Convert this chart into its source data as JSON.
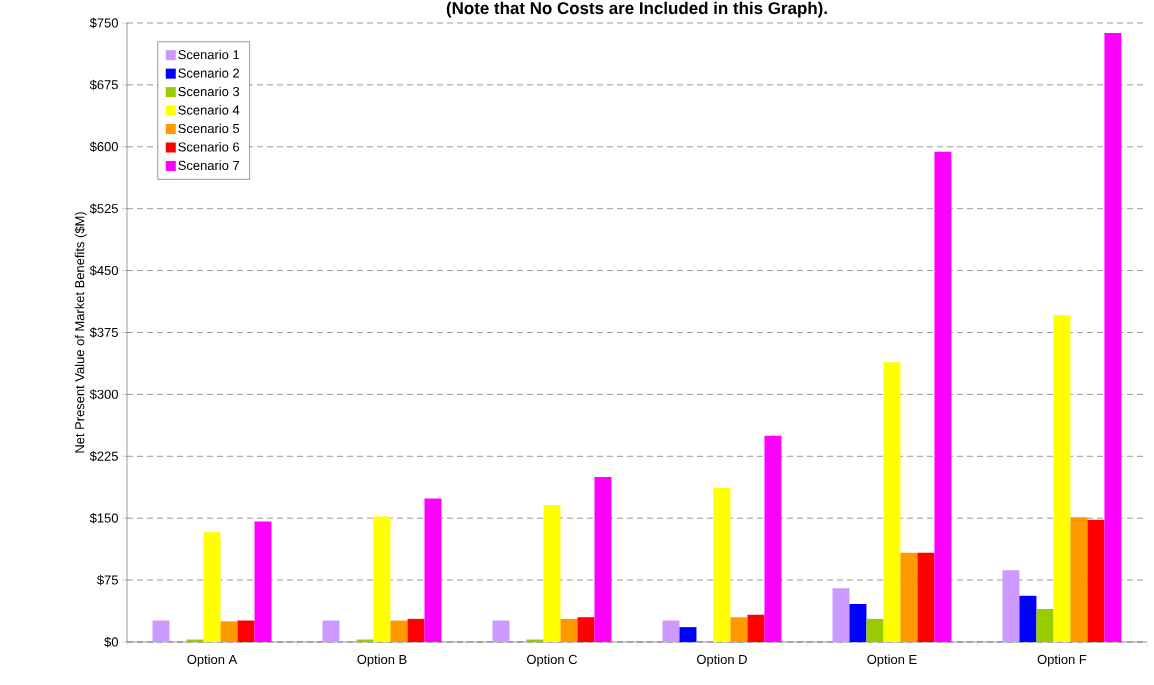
{
  "chart_data": {
    "type": "bar",
    "title": "(Note that No Costs are Included in this Graph).",
    "ylabel": "Net Present Value of Market Benefits ($M)",
    "categories": [
      "Option A",
      "Option B",
      "Option C",
      "Option D",
      "Option E",
      "Option F"
    ],
    "series": [
      {
        "name": "Scenario 1",
        "color": "#cc99ff",
        "values": [
          26,
          26,
          26,
          26,
          65,
          87
        ]
      },
      {
        "name": "Scenario 2",
        "color": "#0000ff",
        "values": [
          0,
          0,
          0,
          18,
          46,
          56
        ]
      },
      {
        "name": "Scenario 3",
        "color": "#99cc00",
        "values": [
          3,
          3,
          3,
          0,
          28,
          40
        ]
      },
      {
        "name": "Scenario 4",
        "color": "#ffff00",
        "values": [
          133,
          152,
          166,
          187,
          339,
          396
        ]
      },
      {
        "name": "Scenario 5",
        "color": "#ff9900",
        "values": [
          25,
          26,
          28,
          30,
          108,
          151
        ]
      },
      {
        "name": "Scenario 6",
        "color": "#ff0000",
        "values": [
          26,
          28,
          30,
          33,
          108,
          148
        ]
      },
      {
        "name": "Scenario 7",
        "color": "#ff00ff",
        "values": [
          146,
          174,
          200,
          250,
          594,
          738
        ]
      }
    ],
    "ylim": [
      0,
      750
    ],
    "yticks": [
      {
        "value": 0,
        "label": "$0"
      },
      {
        "value": 75,
        "label": "$75"
      },
      {
        "value": 150,
        "label": "$150"
      },
      {
        "value": 225,
        "label": "$225"
      },
      {
        "value": 300,
        "label": "$300"
      },
      {
        "value": 375,
        "label": "$375"
      },
      {
        "value": 450,
        "label": "$450"
      },
      {
        "value": 525,
        "label": "$525"
      },
      {
        "value": 600,
        "label": "$600"
      },
      {
        "value": 675,
        "label": "$675"
      },
      {
        "value": 750,
        "label": "$750"
      }
    ],
    "grid": "y",
    "legend": "top left"
  }
}
